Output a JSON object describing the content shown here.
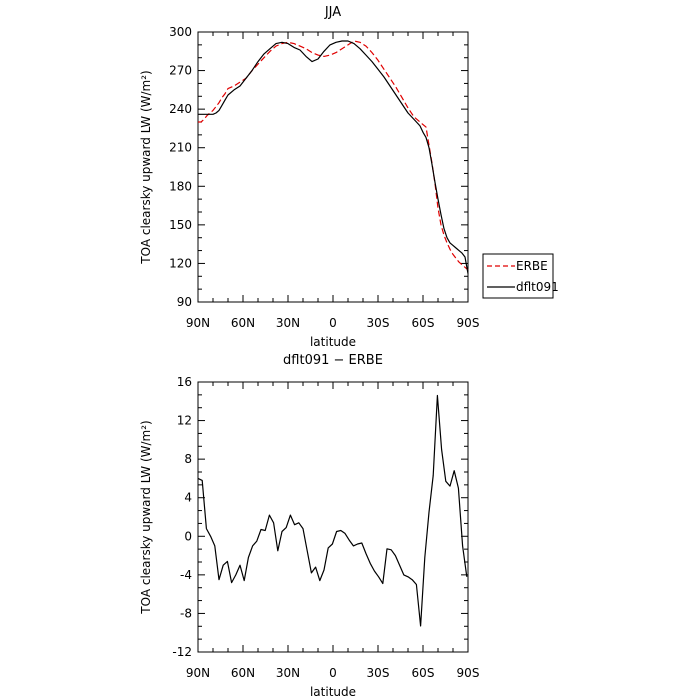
{
  "chart_data": [
    {
      "type": "line",
      "title": "JJA",
      "xlabel": "latitude",
      "ylabel": "TOA clearsky upward LW (W/m²)",
      "xlim": [
        90,
        -90
      ],
      "ylim": [
        90,
        300
      ],
      "x_ticks": [
        90,
        60,
        30,
        0,
        -30,
        -60,
        -90
      ],
      "x_tick_labels": [
        "90N",
        "60N",
        "30N",
        "0",
        "30S",
        "60S",
        "90S"
      ],
      "y_ticks": [
        90,
        120,
        150,
        180,
        210,
        240,
        270,
        300
      ],
      "y_tick_labels": [
        "90",
        "120",
        "150",
        "180",
        "210",
        "240",
        "270",
        "300"
      ],
      "grid": false,
      "legend_position": "right",
      "series": [
        {
          "name": "ERBE",
          "color": "#e00000",
          "dash": "dashed",
          "x": [
            90,
            88,
            86,
            84,
            82,
            80,
            78,
            76,
            74,
            72,
            70,
            66,
            62,
            58,
            54,
            50,
            46,
            42,
            38,
            34,
            30,
            26,
            22,
            18,
            14,
            10,
            6,
            2,
            -2,
            -6,
            -10,
            -14,
            -18,
            -22,
            -26,
            -30,
            -34,
            -38,
            -42,
            -46,
            -50,
            -54,
            -58,
            -60,
            -62,
            -64,
            -66,
            -68,
            -70,
            -72,
            -74,
            -76,
            -78,
            -80,
            -82,
            -84,
            -86,
            -88,
            -90
          ],
          "values": [
            230,
            230,
            232,
            235,
            237,
            239,
            242,
            245,
            249,
            252,
            256,
            258,
            261,
            264,
            270,
            275,
            280,
            285,
            289,
            291,
            292,
            291,
            289,
            287,
            284,
            282,
            281,
            282,
            284,
            287,
            290,
            293,
            292,
            289,
            284,
            278,
            271,
            264,
            257,
            249,
            241,
            234,
            230,
            228,
            226,
            212,
            198,
            182,
            163,
            150,
            142,
            136,
            131,
            127,
            124,
            121,
            119,
            117,
            115
          ]
        },
        {
          "name": "dflt091",
          "color": "#000000",
          "dash": "solid",
          "x": [
            90,
            88,
            86,
            84,
            82,
            80,
            78,
            76,
            74,
            72,
            70,
            66,
            62,
            58,
            54,
            50,
            46,
            42,
            38,
            34,
            30,
            26,
            22,
            18,
            14,
            10,
            6,
            2,
            -2,
            -6,
            -10,
            -14,
            -18,
            -22,
            -26,
            -30,
            -34,
            -38,
            -42,
            -46,
            -50,
            -54,
            -58,
            -60,
            -62,
            -64,
            -66,
            -68,
            -70,
            -72,
            -74,
            -76,
            -78,
            -80,
            -82,
            -84,
            -86,
            -88,
            -90
          ],
          "values": [
            236,
            236,
            236,
            236,
            236,
            236,
            237,
            239,
            243,
            247,
            251,
            255,
            258,
            264,
            270,
            277,
            283,
            287,
            291,
            292,
            291,
            288,
            286,
            281,
            277,
            279,
            285,
            290,
            292,
            293,
            293,
            291,
            287,
            282,
            277,
            271,
            265,
            258,
            251,
            244,
            237,
            232,
            227,
            222,
            218,
            210,
            197,
            183,
            170,
            158,
            147,
            140,
            136,
            134,
            132,
            130,
            128,
            125,
            112
          ]
        }
      ]
    },
    {
      "type": "line",
      "title": "dflt091 − ERBE",
      "xlabel": "latitude",
      "ylabel": "TOA clearsky upward LW (W/m²)",
      "xlim": [
        90,
        -90
      ],
      "ylim": [
        -12,
        16
      ],
      "x_ticks": [
        90,
        60,
        30,
        0,
        -30,
        -60,
        -90
      ],
      "x_tick_labels": [
        "90N",
        "60N",
        "30N",
        "0",
        "30S",
        "60S",
        "90S"
      ],
      "y_ticks": [
        -12,
        -8,
        -4,
        0,
        4,
        8,
        12,
        16
      ],
      "y_tick_labels": [
        "-12",
        "-8",
        "-4",
        "0",
        "4",
        "8",
        "12",
        "16"
      ],
      "grid": false,
      "series": [
        {
          "color": "#000000",
          "dash": "solid",
          "x": [
            90,
            87.2,
            84.4,
            81.6,
            78.8,
            76,
            73.2,
            70.4,
            67.6,
            64.8,
            62,
            59.2,
            56.4,
            53.6,
            50.8,
            48,
            45.2,
            42.4,
            39.6,
            36.8,
            34,
            31.2,
            28.4,
            25.6,
            22.8,
            20,
            17.2,
            14.4,
            11.6,
            8.8,
            6,
            3.2,
            0.4,
            -2.4,
            -5.2,
            -8,
            -10.8,
            -13.6,
            -16.4,
            -19.2,
            -22,
            -24.8,
            -27.6,
            -30.4,
            -33.2,
            -36,
            -38.8,
            -41.6,
            -44.4,
            -47.2,
            -50,
            -52.8,
            -55.6,
            -58.4,
            -61.2,
            -64,
            -66.8,
            -69.6,
            -72.4,
            -75.2,
            -78,
            -80.8,
            -83.6,
            -86.4,
            -89.2
          ],
          "values": [
            6,
            5.8,
            0.8,
            0,
            -1,
            -4.5,
            -3,
            -2.6,
            -4.8,
            -4,
            -3,
            -4.6,
            -2.2,
            -1,
            -0.5,
            0.7,
            0.6,
            2.2,
            1.4,
            -1.5,
            0.5,
            0.9,
            2.2,
            1.2,
            1.4,
            0.8,
            -1.5,
            -3.8,
            -3.2,
            -4.6,
            -3.5,
            -1.2,
            -0.8,
            0.5,
            0.6,
            0.3,
            -0.4,
            -1,
            -0.8,
            -0.7,
            -1.8,
            -2.8,
            -3.6,
            -4.2,
            -4.9,
            -1.3,
            -1.4,
            -2,
            -3,
            -4,
            -4.2,
            -4.5,
            -5,
            -9.3,
            -2.2,
            2.5,
            6.3,
            14.6,
            9,
            5.7,
            5.2,
            6.8,
            5,
            -1,
            -4.2
          ]
        }
      ]
    }
  ]
}
